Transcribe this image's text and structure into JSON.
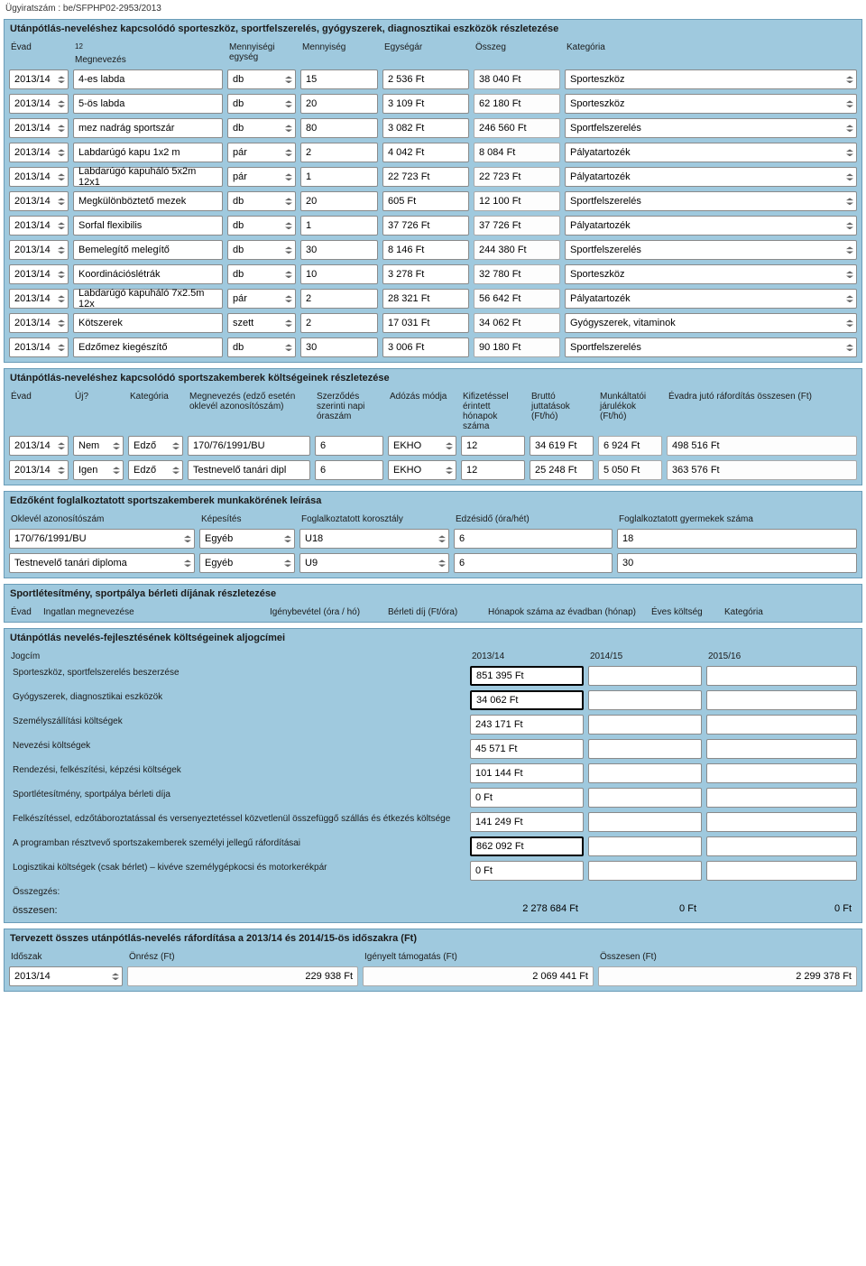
{
  "doc_ref": "Ügyiratszám : be/SFPHP02-2953/2013",
  "section1": {
    "title": "Utánpótlás-neveléshez kapcsolódó sporteszköz, sportfelszerelés, gyógyszerek, diagnosztikai eszközök részletezése",
    "headers": [
      "Évad",
      "Megnevezés",
      "Mennyiségi egység",
      "Mennyiség",
      "Egységár",
      "Összeg",
      "Kategória"
    ],
    "footnote": "12",
    "rows": [
      [
        "2013/14",
        "4-es labda",
        "db",
        "15",
        "2 536 Ft",
        "38 040  Ft",
        "Sporteszköz"
      ],
      [
        "2013/14",
        "5-ös labda",
        "db",
        "20",
        "3 109 Ft",
        "62 180  Ft",
        "Sporteszköz"
      ],
      [
        "2013/14",
        "mez nadrág sportszár",
        "db",
        "80",
        "3 082 Ft",
        "246 560  Ft",
        "Sportfelszerelés"
      ],
      [
        "2013/14",
        "Labdarúgó kapu 1x2 m",
        "pár",
        "2",
        "4 042 Ft",
        "8 084  Ft",
        "Pályatartozék"
      ],
      [
        "2013/14",
        "Labdarúgó kapuháló 5x2m 12x1",
        "pár",
        "1",
        "22 723 Ft",
        "22 723  Ft",
        "Pályatartozék"
      ],
      [
        "2013/14",
        "Megkülönböztető mezek",
        "db",
        "20",
        "605 Ft",
        "12 100  Ft",
        "Sportfelszerelés"
      ],
      [
        "2013/14",
        "Sorfal flexibilis",
        "db",
        "1",
        "37 726 Ft",
        "37 726  Ft",
        "Pályatartozék"
      ],
      [
        "2013/14",
        "Bemelegítő melegítő",
        "db",
        "30",
        "8 146 Ft",
        "244 380  Ft",
        "Sportfelszerelés"
      ],
      [
        "2013/14",
        "Koordinációslétrák",
        "db",
        "10",
        "3 278 Ft",
        "32 780  Ft",
        "Sporteszköz"
      ],
      [
        "2013/14",
        "Labdarúgó kapuháló 7x2.5m 12x",
        "pár",
        "2",
        "28 321 Ft",
        "56 642  Ft",
        "Pályatartozék"
      ],
      [
        "2013/14",
        "Kötszerek",
        "szett",
        "2",
        "17 031 Ft",
        "34 062  Ft",
        "Gyógyszerek, vitaminok"
      ],
      [
        "2013/14",
        "Edzőmez kiegészítő",
        "db",
        "30",
        "3 006 Ft",
        "90 180  Ft",
        "Sportfelszerelés"
      ]
    ]
  },
  "section2": {
    "title": "Utánpótlás-neveléshez kapcsolódó sportszakemberek költségeinek részletezése",
    "headers": [
      "Évad",
      "Új?",
      "Kategória",
      "Megnevezés (edző esetén oklevél azonosítószám)",
      "Szerződés szerinti napi óraszám",
      "Adózás módja",
      "Kifizetéssel érintett hónapok száma",
      "Bruttó juttatások (Ft/hó)",
      "Munkáltatói járulékok (Ft/hó)",
      "Évadra jutó ráfordítás összesen (Ft)"
    ],
    "rows": [
      [
        "2013/14",
        "Nem",
        "Edző",
        "170/76/1991/BU",
        "6",
        "EKHO",
        "12",
        "34 619 Ft",
        "6 924  Ft",
        "498 516  Ft"
      ],
      [
        "2013/14",
        "Igen",
        "Edző",
        "Testnevelő tanári dipl",
        "6",
        "EKHO",
        "12",
        "25 248 Ft",
        "5 050  Ft",
        "363 576  Ft"
      ]
    ]
  },
  "section3": {
    "title": "Edzőként foglalkoztatott sportszakemberek munkakörének leírása",
    "headers": [
      "Oklevél azonosítószám",
      "Képesítés",
      "Foglalkoztatott korosztály",
      "Edzésidő (óra/hét)",
      "Foglalkoztatott gyermekek száma"
    ],
    "rows": [
      [
        "170/76/1991/BU",
        "Egyéb",
        "U18",
        "6",
        "18"
      ],
      [
        "Testnevelő tanári diploma",
        "Egyéb",
        "U9",
        "6",
        "30"
      ]
    ]
  },
  "section4": {
    "title": "Sportlétesítmény, sportpálya bérleti díjának részletezése",
    "headers": [
      "Évad",
      "Ingatlan megnevezése",
      "Igénybevétel (óra / hó)",
      "Bérleti díj (Ft/óra)",
      "Hónapok száma az évadban (hónap)",
      "Éves költség",
      "Kategória"
    ]
  },
  "section5": {
    "title": "Utánpótlás nevelés-fejlesztésének költségeinek aljogcímei",
    "headers": [
      "Jogcím",
      "2013/14",
      "2014/15",
      "2015/16"
    ],
    "rows": [
      {
        "label": "Sporteszköz, sportfelszerelés beszerzése",
        "v1": "851 395  Ft",
        "bold": true
      },
      {
        "label": "Gyógyszerek, diagnosztikai eszközök",
        "v1": "34 062  Ft",
        "bold": true
      },
      {
        "label": "Személyszállítási költségek",
        "v1": "243 171 Ft",
        "bold": false
      },
      {
        "label": "Nevezési költségek",
        "v1": "45 571 Ft",
        "bold": false
      },
      {
        "label": "Rendezési, felkészítési, képzési költségek",
        "v1": "101 144 Ft",
        "bold": false
      },
      {
        "label": "Sportlétesítmény, sportpálya bérleti díja",
        "v1": "0  Ft",
        "bold": false
      },
      {
        "label": "Felkészítéssel, edzőtáboroztatással és versenyeztetéssel közvetlenül összefüggő szállás és étkezés költsége",
        "v1": "141 249 Ft",
        "bold": false
      },
      {
        "label": "A programban résztvevő sportszakemberek személyi jellegű ráfordításai",
        "v1": "862 092  Ft",
        "bold": true
      },
      {
        "label": "Logisztikai költségek (csak bérlet) – kivéve személygépkocsi és motorkerékpár",
        "v1": "0 Ft",
        "bold": false
      }
    ],
    "summary_label": "Összegzés:",
    "total_label": "összesen:",
    "totals": [
      "2 278 684 Ft",
      "0 Ft",
      "0 Ft"
    ]
  },
  "section6": {
    "title": "Tervezett összes utánpótlás-nevelés ráfordítása a 2013/14 és 2014/15-ös időszakra (Ft)",
    "headers": [
      "Időszak",
      "Önrész (Ft)",
      "Igényelt támogatás (Ft)",
      "Összesen (Ft)"
    ],
    "rows": [
      [
        "2013/14",
        "229 938 Ft",
        "2 069 441 Ft",
        "2 299 378 Ft"
      ]
    ]
  }
}
